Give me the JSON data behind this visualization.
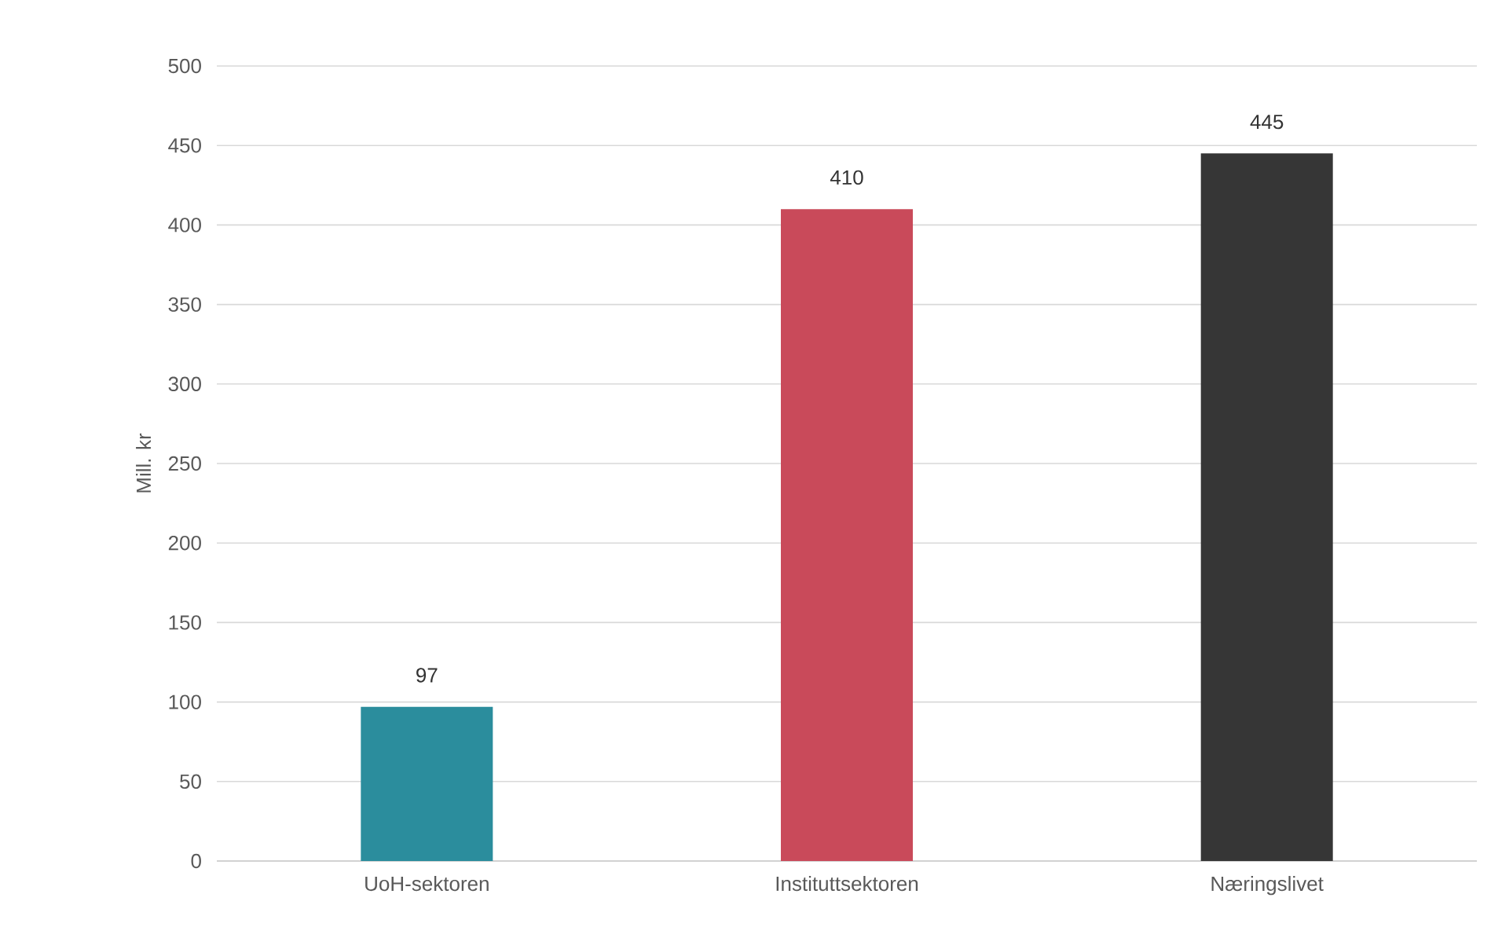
{
  "chart_data": {
    "type": "bar",
    "ylabel": "Mill. kr",
    "categories": [
      "UoH-sektoren",
      "Instituttsektoren",
      "Næringslivet"
    ],
    "values": [
      97,
      410,
      445
    ],
    "colors": [
      "#2b8d9d",
      "#c94a5a",
      "#363636"
    ],
    "ylim": [
      0,
      500
    ],
    "yticks": [
      0,
      50,
      100,
      150,
      200,
      250,
      300,
      350,
      400,
      450,
      500
    ],
    "grid": "y",
    "data_labels": true
  }
}
